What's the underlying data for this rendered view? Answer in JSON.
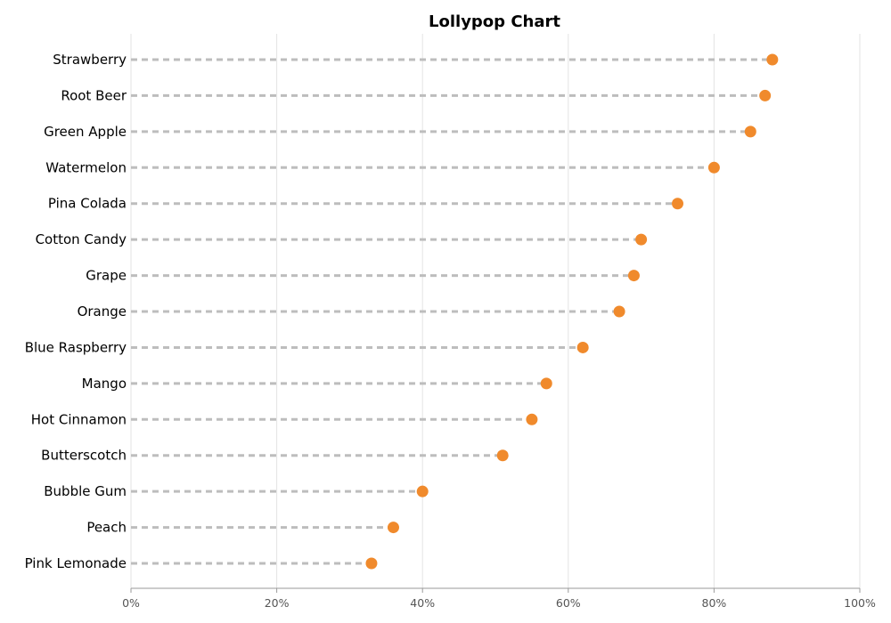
{
  "chart_data": {
    "type": "scatter",
    "subtype": "lollipop",
    "title": "Lollypop Chart",
    "xlabel": "",
    "ylabel": "",
    "categories": [
      "Strawberry",
      "Root Beer",
      "Green Apple",
      "Watermelon",
      "Pina Colada",
      "Cotton Candy",
      "Grape",
      "Orange",
      "Blue Raspberry",
      "Mango",
      "Hot Cinnamon",
      "Butterscotch",
      "Bubble Gum",
      "Peach",
      "Pink Lemonade"
    ],
    "values": [
      88,
      87,
      85,
      80,
      75,
      70,
      69,
      67,
      62,
      57,
      55,
      51,
      40,
      36,
      33
    ],
    "xlim": [
      0,
      100
    ],
    "xticks": [
      0,
      20,
      40,
      60,
      80,
      100
    ],
    "xtick_labels": [
      "0%",
      "20%",
      "40%",
      "60%",
      "80%",
      "100%"
    ],
    "grid": "vertical",
    "colors": {
      "marker": "#f08a2c",
      "stem": "#bdbdbd"
    }
  }
}
